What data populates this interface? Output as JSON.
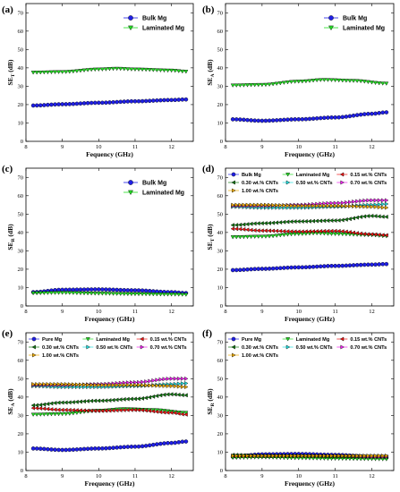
{
  "chart_data": [
    {
      "label": "(a)",
      "type": "line",
      "xlabel": "Fequency (GHz)",
      "ylabel": "SE_T (dB)",
      "xlim": [
        8.2,
        12.4
      ],
      "ylim": [
        0,
        75
      ],
      "legend": "top-right",
      "series": [
        {
          "name": "Bulk Mg",
          "x": [
            8.2,
            9,
            10,
            11,
            12,
            12.4
          ],
          "y": [
            19.5,
            20.2,
            21.0,
            21.8,
            22.5,
            22.8
          ]
        },
        {
          "name": "Laminated Mg",
          "x": [
            8.2,
            9,
            10,
            10.5,
            11,
            12,
            12.4
          ],
          "y": [
            37.5,
            37.8,
            39.2,
            39.6,
            39.2,
            38.6,
            38.0
          ]
        }
      ]
    },
    {
      "label": "(b)",
      "type": "line",
      "xlabel": "Frequency (GHz)",
      "ylabel": "SE_A (dB)",
      "xlim": [
        8.2,
        12.4
      ],
      "ylim": [
        0,
        75
      ],
      "legend": "top-right",
      "series": [
        {
          "name": "Bulk Mg",
          "x": [
            8.2,
            9,
            10,
            11,
            12,
            12.4
          ],
          "y": [
            12.0,
            11.2,
            12.0,
            13.0,
            15.0,
            15.8
          ]
        },
        {
          "name": "Laminated Mg",
          "x": [
            8.2,
            9,
            10,
            10.7,
            11.5,
            12.4
          ],
          "y": [
            30.5,
            30.8,
            32.6,
            33.5,
            33.0,
            31.5
          ]
        }
      ]
    },
    {
      "label": "(c)",
      "type": "line",
      "xlabel": "Frequency (GHz)",
      "ylabel": "SE_R (dB)",
      "xlim": [
        8.2,
        12.4
      ],
      "ylim": [
        0,
        75
      ],
      "legend": "top-right",
      "series": [
        {
          "name": "Bulk Mg",
          "x": [
            8.2,
            9,
            10,
            11,
            12,
            12.4
          ],
          "y": [
            7.5,
            8.8,
            9.0,
            8.5,
            7.5,
            7.0
          ]
        },
        {
          "name": "Laminated Mg",
          "x": [
            8.2,
            9,
            10,
            11,
            12,
            12.4
          ],
          "y": [
            7.0,
            7.2,
            6.8,
            6.5,
            6.3,
            6.2
          ]
        }
      ]
    },
    {
      "label": "(d)",
      "type": "line",
      "xlabel": "Frequency (GHz)",
      "ylabel": "SE_T (dB)",
      "xlim": [
        8.2,
        12.4
      ],
      "ylim": [
        0,
        75
      ],
      "legend": "top",
      "series": [
        {
          "name": "Bulk Mg",
          "x": [
            8.2,
            9,
            10,
            11,
            12,
            12.4
          ],
          "y": [
            19.5,
            20.2,
            21.0,
            21.8,
            22.5,
            22.8
          ]
        },
        {
          "name": "Laminated Mg",
          "x": [
            8.2,
            9,
            10,
            10.5,
            11,
            12,
            12.4
          ],
          "y": [
            37.5,
            37.8,
            39.2,
            39.6,
            39.2,
            38.6,
            38.0
          ]
        },
        {
          "name": "0.15 wt.% CNTs",
          "x": [
            8.2,
            9,
            10,
            11,
            12,
            12.4
          ],
          "y": [
            42.0,
            41.0,
            40.5,
            40.8,
            39.0,
            38.5
          ]
        },
        {
          "name": "0.30 wt.% CNTs",
          "x": [
            8.2,
            9,
            10,
            11,
            12,
            12.4
          ],
          "y": [
            44.0,
            45.0,
            46.0,
            46.5,
            49.0,
            48.5
          ]
        },
        {
          "name": "0.50 wt.% CNTs",
          "x": [
            8.2,
            9,
            10,
            11,
            12,
            12.4
          ],
          "y": [
            54.0,
            53.5,
            53.5,
            54.0,
            55.0,
            55.5
          ]
        },
        {
          "name": "0.70 wt.% CNTs",
          "x": [
            8.2,
            9,
            10,
            11,
            12,
            12.4
          ],
          "y": [
            54.5,
            54.5,
            55.0,
            56.0,
            57.5,
            57.5
          ]
        },
        {
          "name": "1.00 wt.% CNTs",
          "x": [
            8.2,
            9,
            10,
            11,
            12,
            12.4
          ],
          "y": [
            55.0,
            55.0,
            54.5,
            54.5,
            54.0,
            53.5
          ]
        }
      ]
    },
    {
      "label": "(e)",
      "type": "line",
      "xlabel": "Frequency (GHz)",
      "ylabel": "SE_A (dB)",
      "xlim": [
        8.2,
        12.4
      ],
      "ylim": [
        0,
        75
      ],
      "legend": "top",
      "series": [
        {
          "name": "Pure Mg",
          "x": [
            8.2,
            9,
            10,
            11,
            12,
            12.4
          ],
          "y": [
            12.0,
            11.2,
            12.0,
            13.0,
            15.0,
            15.8
          ]
        },
        {
          "name": "Laminated Mg",
          "x": [
            8.2,
            9,
            10,
            10.7,
            11.5,
            12.4
          ],
          "y": [
            30.5,
            30.8,
            32.6,
            33.5,
            33.0,
            31.5
          ]
        },
        {
          "name": "0.15 wt.% CNTs",
          "x": [
            8.2,
            9,
            10,
            11,
            12,
            12.4
          ],
          "y": [
            34.0,
            33.0,
            32.5,
            33.0,
            31.5,
            30.5
          ]
        },
        {
          "name": "0.30 wt.% CNTs",
          "x": [
            8.2,
            9,
            10,
            11,
            12,
            12.4
          ],
          "y": [
            35.5,
            37.0,
            38.0,
            39.0,
            41.5,
            41.0
          ]
        },
        {
          "name": "0.50 wt.% CNTs",
          "x": [
            8.2,
            9,
            10,
            11,
            12,
            12.4
          ],
          "y": [
            46.0,
            45.5,
            45.5,
            46.0,
            47.0,
            47.5
          ]
        },
        {
          "name": "0.70 wt.% CNTs",
          "x": [
            8.2,
            9,
            10,
            11,
            12,
            12.4
          ],
          "y": [
            46.5,
            46.5,
            47.0,
            48.0,
            50.0,
            50.0
          ]
        },
        {
          "name": "1.00 wt.% CNTs",
          "x": [
            8.2,
            9,
            10,
            11,
            12,
            12.4
          ],
          "y": [
            47.0,
            47.0,
            46.5,
            46.5,
            46.0,
            45.5
          ]
        }
      ]
    },
    {
      "label": "(f)",
      "type": "line",
      "xlabel": "Frequency (GHz)",
      "ylabel": "SE_R (dB)",
      "xlim": [
        8.2,
        12.4
      ],
      "ylim": [
        0,
        75
      ],
      "legend": "top",
      "series": [
        {
          "name": "Pure Mg",
          "x": [
            8.2,
            9,
            10,
            11,
            12,
            12.4
          ],
          "y": [
            7.5,
            8.8,
            9.0,
            8.5,
            7.5,
            7.0
          ]
        },
        {
          "name": "Laminated Mg",
          "x": [
            8.2,
            9,
            10,
            11,
            12,
            12.4
          ],
          "y": [
            7.0,
            7.2,
            6.8,
            6.5,
            6.3,
            6.2
          ]
        },
        {
          "name": "0.15 wt.% CNTs",
          "x": [
            8.2,
            9,
            10,
            11,
            12,
            12.4
          ],
          "y": [
            8.0,
            8.0,
            8.0,
            7.8,
            7.5,
            7.5
          ]
        },
        {
          "name": "0.30 wt.% CNTs",
          "x": [
            8.2,
            9,
            10,
            11,
            12,
            12.4
          ],
          "y": [
            8.5,
            8.0,
            8.0,
            7.5,
            7.5,
            7.5
          ]
        },
        {
          "name": "0.50 wt.% CNTs",
          "x": [
            8.2,
            9,
            10,
            11,
            12,
            12.4
          ],
          "y": [
            8.0,
            8.0,
            8.0,
            8.0,
            8.0,
            8.0
          ]
        },
        {
          "name": "0.70 wt.% CNTs",
          "x": [
            8.2,
            9,
            10,
            11,
            12,
            12.4
          ],
          "y": [
            8.0,
            8.0,
            8.0,
            8.0,
            7.5,
            7.5
          ]
        },
        {
          "name": "1.00 wt.% CNTs",
          "x": [
            8.2,
            9,
            10,
            11,
            12,
            12.4
          ],
          "y": [
            8.0,
            8.0,
            8.0,
            8.0,
            8.0,
            8.0
          ]
        }
      ]
    }
  ],
  "yticks": [
    0,
    10,
    20,
    30,
    40,
    50,
    60,
    70
  ],
  "xticks": [
    8,
    9,
    10,
    11,
    12
  ],
  "series_styles": {
    "Bulk Mg": {
      "color": "#1f1fe6",
      "marker": "circle"
    },
    "Pure Mg": {
      "color": "#1f1fe6",
      "marker": "circle"
    },
    "Laminated Mg": {
      "color": "#22dd22",
      "marker": "triangle-down"
    },
    "0.15 wt.% CNTs": {
      "color": "#ee1111",
      "marker": "triangle-left"
    },
    "0.30 wt.% CNTs": {
      "color": "#117711",
      "marker": "triangle-left"
    },
    "0.50 wt.% CNTs": {
      "color": "#22dddd",
      "marker": "triangle-right"
    },
    "0.70 wt.% CNTs": {
      "color": "#ee22ee",
      "marker": "triangle-right"
    },
    "1.00 wt.% CNTs": {
      "color": "#eeaa00",
      "marker": "triangle-right"
    }
  }
}
